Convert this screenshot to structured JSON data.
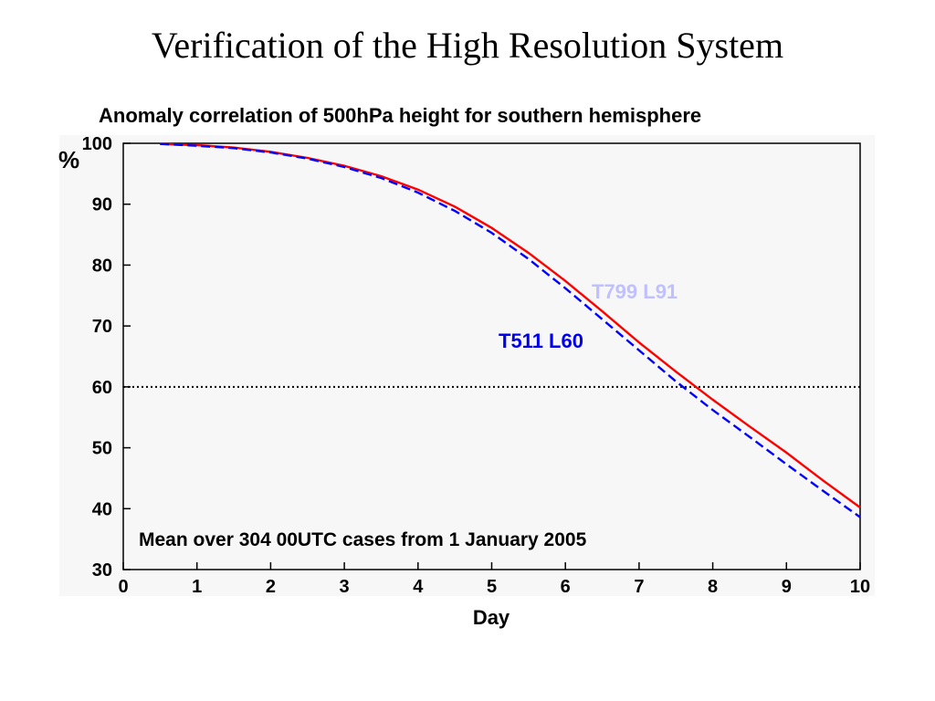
{
  "slide": {
    "title": "Verification of the High Resolution System"
  },
  "chart_data": {
    "type": "line",
    "title": "Anomaly correlation of 500hPa height for southern hemisphere",
    "xlabel": "Day",
    "ylabel": "%",
    "xlim": [
      0,
      10
    ],
    "ylim": [
      30,
      100
    ],
    "xticks": [
      0,
      1,
      2,
      3,
      4,
      5,
      6,
      7,
      8,
      9,
      10
    ],
    "yticks": [
      30,
      40,
      50,
      60,
      70,
      80,
      90,
      100
    ],
    "grid": false,
    "reference_line": {
      "y": 60,
      "style": "dotted"
    },
    "annotation": "Mean over 304 00UTC cases from 1 January 2005",
    "series": [
      {
        "name": "T799 L91",
        "color": "#ff0000",
        "label_color": "#c0c0ff",
        "style": "solid",
        "x": [
          0.5,
          1,
          1.5,
          2,
          2.5,
          3,
          3.5,
          4,
          4.5,
          5,
          5.5,
          6,
          6.5,
          7,
          7.5,
          8,
          8.5,
          9,
          9.5,
          10
        ],
        "y": [
          99.9,
          99.7,
          99.3,
          98.6,
          97.6,
          96.3,
          94.6,
          92.4,
          89.6,
          86.1,
          82.0,
          77.4,
          72.4,
          67.3,
          62.5,
          57.9,
          53.5,
          49.2,
          44.6,
          40.2
        ]
      },
      {
        "name": "T511 L60",
        "color": "#0000ff",
        "label_color": "#0000ee",
        "style": "dashed",
        "x": [
          0.5,
          1,
          1.5,
          2,
          2.5,
          3,
          3.5,
          4,
          4.5,
          5,
          5.5,
          6,
          6.5,
          7,
          7.5,
          8,
          8.5,
          9,
          9.5,
          10
        ],
        "y": [
          99.9,
          99.6,
          99.2,
          98.5,
          97.5,
          96.1,
          94.3,
          91.9,
          88.9,
          85.3,
          81.0,
          76.2,
          71.1,
          66.0,
          60.9,
          56.2,
          51.8,
          47.3,
          42.9,
          38.6
        ]
      }
    ]
  }
}
